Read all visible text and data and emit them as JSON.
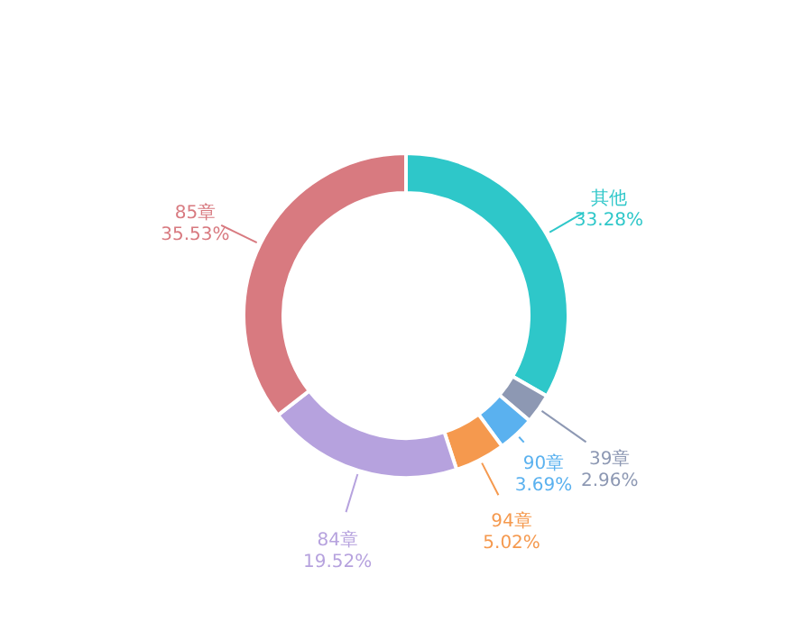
{
  "chart_data": {
    "type": "donut",
    "categories": [
      "其他",
      "39章",
      "90章",
      "94章",
      "84章",
      "85章"
    ],
    "values": [
      33.28,
      2.96,
      3.69,
      5.02,
      19.52,
      35.53
    ],
    "colors": [
      "#2ec7c9",
      "#8d98b3",
      "#5ab1ef",
      "#f5994e",
      "#b6a2de",
      "#d87a80"
    ],
    "value_labels": [
      "33.28%",
      "2.96%",
      "3.69%",
      "5.02%",
      "19.52%",
      "35.53%"
    ]
  }
}
